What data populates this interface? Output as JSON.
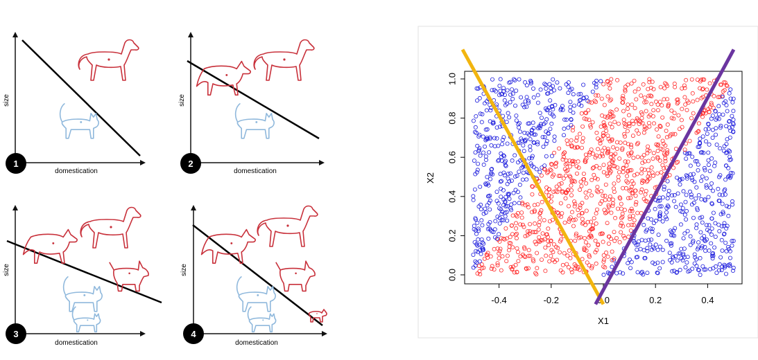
{
  "panels": [
    {
      "number": "1",
      "xlabel": "domestication",
      "ylabel": "size"
    },
    {
      "number": "2",
      "xlabel": "domestication",
      "ylabel": "size"
    },
    {
      "number": "3",
      "xlabel": "domestication",
      "ylabel": "size"
    },
    {
      "number": "4",
      "xlabel": "domestication",
      "ylabel": "size"
    }
  ],
  "colors": {
    "dog": "#c8303a",
    "cat": "#8fb8dc",
    "class_red": "#ff2a2a",
    "class_blue": "#1a1adc",
    "line_orange": "#f2b50f",
    "line_purple": "#6b35a0"
  },
  "chart_data": {
    "type": "scatter",
    "xlabel": "X1",
    "ylabel": "X2",
    "xlim": [
      -0.5,
      0.5
    ],
    "ylim": [
      0,
      1
    ],
    "xticks": [
      "-0.4",
      "-0.2",
      "0.0",
      "0.2",
      "0.4"
    ],
    "yticks": [
      "0.0",
      "0.2",
      "0.4",
      "0.6",
      "0.8",
      "1.0"
    ],
    "grid": false,
    "n_points": 1700,
    "classes": [
      {
        "color": "red",
        "region": "-0.5*(1-x2) < x1 < 0.5*x2 (wedge between the two lines)"
      },
      {
        "color": "blue",
        "region": "outside the wedge"
      }
    ],
    "lines": [
      {
        "color": "orange",
        "from": [
          -0.54,
          1.15
        ],
        "to": [
          0.0,
          -0.15
        ]
      },
      {
        "color": "purple",
        "from": [
          0.5,
          1.15
        ],
        "to": [
          -0.03,
          -0.15
        ]
      }
    ]
  }
}
